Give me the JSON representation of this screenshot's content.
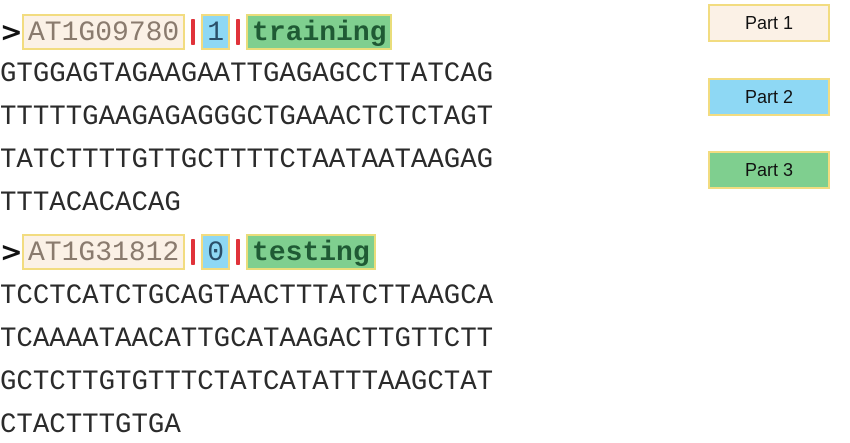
{
  "header_marker": ">",
  "records": [
    {
      "id": "AT1G09780",
      "label": "1",
      "split": "training",
      "sequence": [
        "GTGGAGTAGAAGAATTGAGAGCCTTATCAG",
        "TTTTTGAAGAGAGGGCTGAAACTCTCTAGT",
        "TATCTTTTGTTGCTTTTCTAATAATAAGAG",
        "TTTACACACAG"
      ]
    },
    {
      "id": "AT1G31812",
      "label": "0",
      "split": "testing",
      "sequence": [
        "TCCTCATCTGCAGTAACTTTATCTTAAGCA",
        "TCAAAATAACATTGCATAAGACTTGTTCTT",
        "GCTCTTGTGTTTCTATCATATTTAAGCTAT",
        "CTACTTTGTGA"
      ]
    }
  ],
  "legend": [
    {
      "label": "Part 1",
      "color": "#fbf1e6"
    },
    {
      "label": "Part 2",
      "color": "#8ed8f4"
    },
    {
      "label": "Part 3",
      "color": "#7fcf8f"
    }
  ],
  "colors": {
    "separator": "#e0323a",
    "border": "#f2dc80"
  }
}
